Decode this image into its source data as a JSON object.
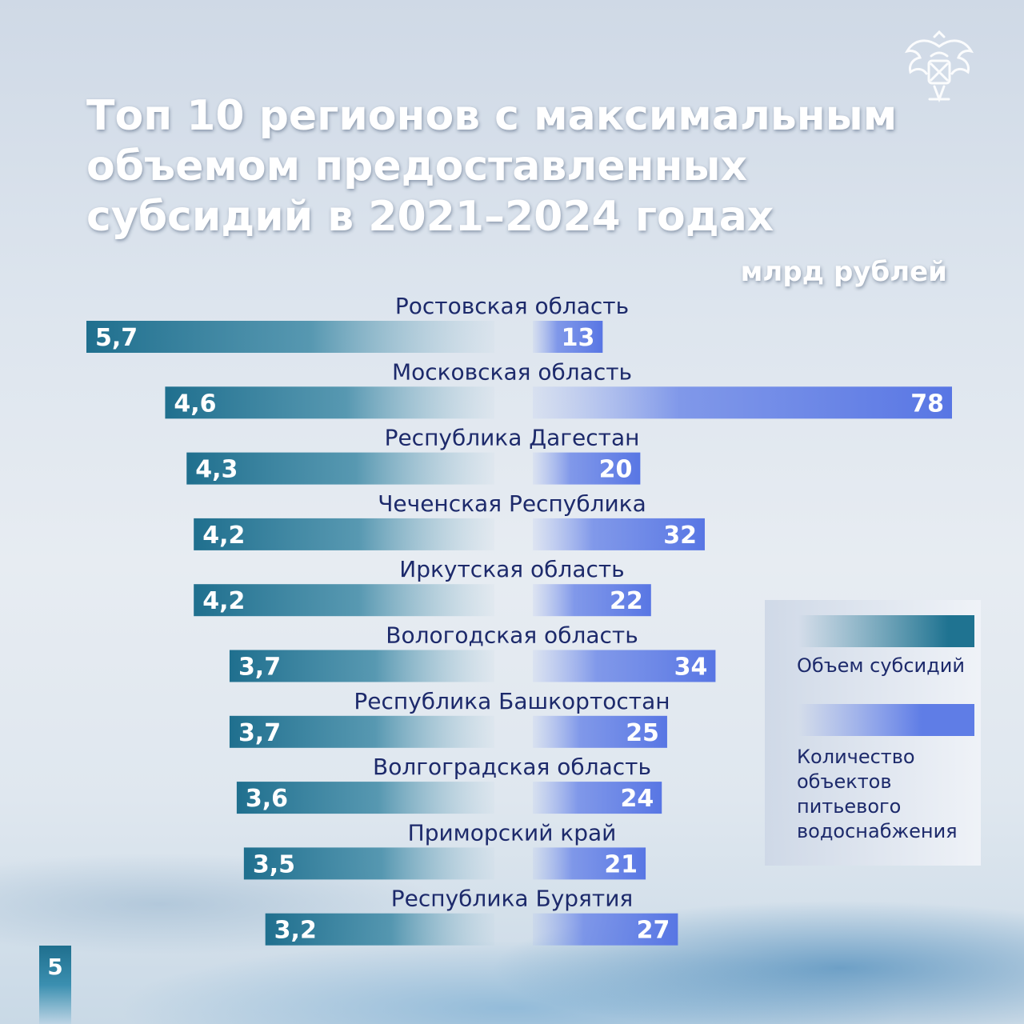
{
  "title": "Топ 10 регионов с максимальным\nобъемом предоставленных\nсубсидий в 2021–2024 годах",
  "unit_label": "млрд рублей",
  "page_number": "5",
  "legend": {
    "subsidy": "Объем субсидий",
    "objects": "Количество\nобъектов\nпитьевого\nводоснабжения"
  },
  "colors": {
    "subsidy": "#1f7391",
    "objects": "#5f7de6",
    "label": "#1d2a6b"
  },
  "chart_data": {
    "type": "bar",
    "orientation": "horizontal-diverging",
    "title": "Топ 10 регионов с максимальным объемом предоставленных субсидий в 2021–2024 годах",
    "categories": [
      "Ростовская область",
      "Московская область",
      "Республика Дагестан",
      "Чеченская Республика",
      "Иркутская область",
      "Вологодская область",
      "Республика Башкортостан",
      "Волгоградская область",
      "Приморский край",
      "Республика Бурятия"
    ],
    "series": [
      {
        "name": "Объем субсидий",
        "unit": "млрд рублей",
        "values": [
          5.7,
          4.6,
          4.3,
          4.2,
          4.2,
          3.7,
          3.7,
          3.6,
          3.5,
          3.2
        ],
        "labels": [
          "5,7",
          "4,6",
          "4,3",
          "4,2",
          "4,2",
          "3,7",
          "3,7",
          "3,6",
          "3,5",
          "3,2"
        ]
      },
      {
        "name": "Количество объектов питьевого водоснабжения",
        "values": [
          13,
          78,
          20,
          32,
          22,
          34,
          25,
          24,
          21,
          27
        ],
        "labels": [
          "13",
          "78",
          "20",
          "32",
          "22",
          "34",
          "25",
          "24",
          "21",
          "27"
        ]
      }
    ],
    "grid": false,
    "legend_position": "right"
  }
}
